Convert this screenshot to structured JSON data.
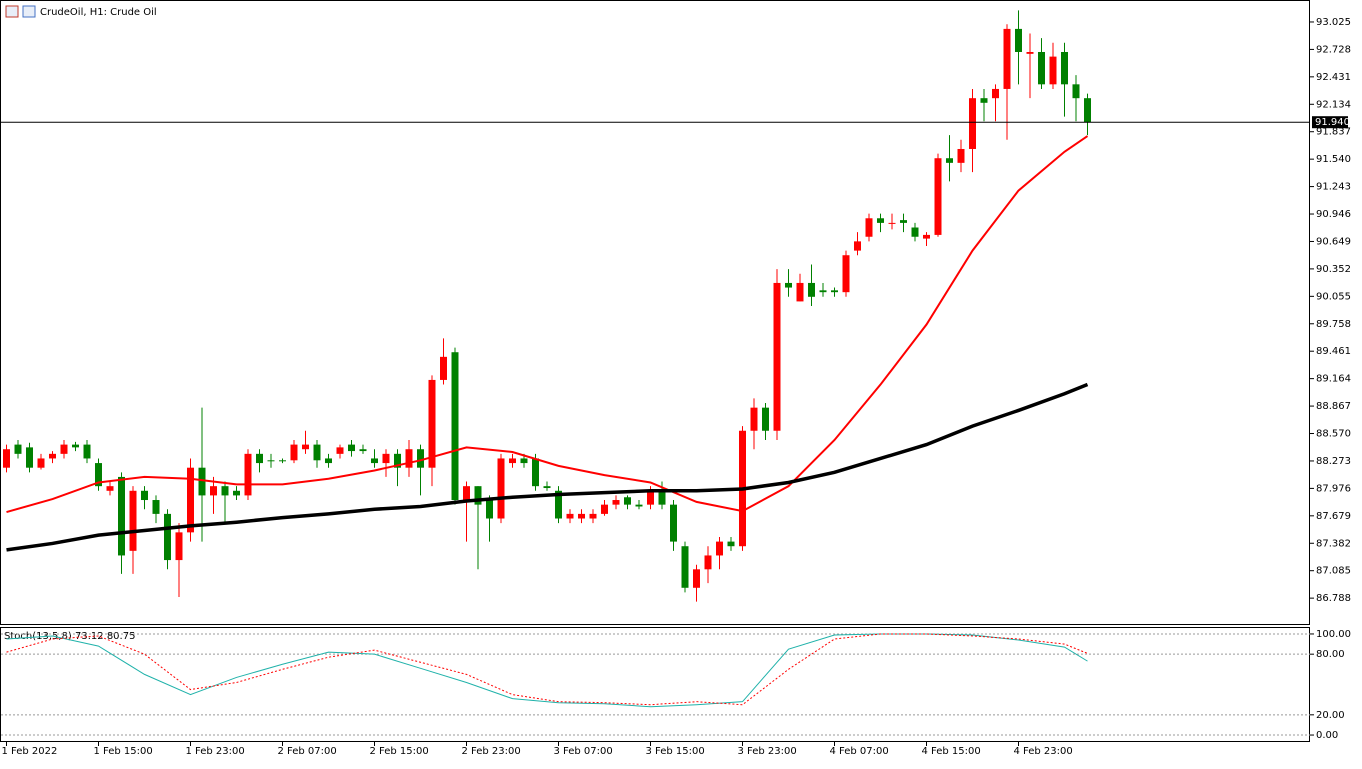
{
  "chart_data": [
    {
      "type": "candlestick",
      "title": "CrudeOil, H1:  Crude Oil",
      "categories": [
        "1 Feb 2022",
        null,
        null,
        null,
        null,
        null,
        null,
        null,
        "1 Feb 15:00",
        null,
        null,
        null,
        null,
        null,
        null,
        null,
        "1 Feb 23:00",
        null,
        null,
        null,
        null,
        null,
        null,
        null,
        "2 Feb 07:00",
        null,
        null,
        null,
        null,
        null,
        null,
        null,
        "2 Feb 15:00",
        null,
        null,
        null,
        null,
        null,
        null,
        null,
        "2 Feb 23:00",
        null,
        null,
        null,
        null,
        null,
        null,
        null,
        "3 Feb 07:00",
        null,
        null,
        null,
        null,
        null,
        null,
        null,
        "3 Feb 15:00",
        null,
        null,
        null,
        null,
        null,
        null,
        null,
        "3 Feb 23:00",
        null,
        null,
        null,
        null,
        null,
        null,
        null,
        "4 Feb 07:00",
        null,
        null,
        null,
        null,
        null,
        null,
        null,
        "4 Feb 15:00",
        null,
        null,
        null,
        null,
        null,
        null,
        null,
        "4 Feb 23:00",
        null,
        null,
        null,
        null,
        null,
        null
      ],
      "open": [
        88.2,
        88.45,
        88.42,
        88.2,
        88.3,
        88.35,
        88.45,
        88.45,
        88.25,
        87.95,
        88.1,
        87.3,
        87.95,
        87.85,
        87.7,
        87.2,
        87.5,
        88.2,
        87.9,
        88.0,
        87.95,
        87.9,
        88.35,
        88.28,
        88.28,
        88.28,
        88.4,
        88.45,
        88.3,
        88.35,
        88.45,
        88.4,
        88.3,
        88.25,
        88.35,
        88.2,
        88.4,
        88.2,
        89.15,
        89.45,
        87.85,
        88.0,
        87.85,
        87.65,
        88.25,
        88.3,
        88.3,
        88.0,
        87.95,
        87.65,
        87.65,
        87.65,
        87.7,
        87.8,
        87.88,
        87.8,
        87.8,
        87.95,
        87.8,
        87.35,
        86.9,
        87.1,
        87.25,
        87.4,
        87.35,
        88.6,
        88.85,
        88.6,
        90.2,
        90.0,
        90.2,
        90.12,
        90.12,
        90.1,
        90.55,
        90.7,
        90.9,
        90.85,
        90.88,
        90.8,
        90.68,
        90.72,
        91.55,
        91.5,
        91.65,
        92.2,
        92.2,
        92.3,
        92.95,
        92.68,
        92.7,
        92.35,
        92.7,
        92.35,
        92.2
      ],
      "high": [
        88.45,
        88.5,
        88.47,
        88.35,
        88.38,
        88.5,
        88.48,
        88.5,
        88.3,
        88.05,
        88.15,
        88.0,
        88.0,
        87.9,
        87.75,
        87.6,
        88.3,
        88.85,
        88.1,
        88.05,
        88.0,
        88.4,
        88.4,
        88.35,
        88.3,
        88.5,
        88.6,
        88.5,
        88.35,
        88.45,
        88.5,
        88.45,
        88.4,
        88.4,
        88.4,
        88.5,
        88.45,
        89.2,
        89.6,
        89.5,
        88.05,
        88.0,
        87.9,
        88.35,
        88.35,
        88.35,
        88.35,
        88.05,
        88.0,
        87.75,
        87.75,
        87.75,
        87.85,
        87.9,
        87.9,
        87.85,
        88.0,
        88.05,
        87.85,
        87.4,
        87.15,
        87.35,
        87.45,
        87.45,
        88.65,
        88.95,
        88.9,
        90.35,
        90.35,
        90.3,
        90.4,
        90.2,
        90.15,
        90.55,
        90.75,
        90.95,
        90.95,
        90.95,
        90.95,
        90.85,
        90.75,
        91.6,
        91.8,
        91.75,
        92.3,
        92.3,
        92.35,
        93.0,
        93.15,
        92.9,
        92.85,
        92.8,
        92.8,
        92.45,
        92.25
      ],
      "low": [
        88.15,
        88.3,
        88.15,
        88.18,
        88.25,
        88.3,
        88.38,
        88.25,
        87.95,
        87.9,
        87.05,
        87.05,
        87.75,
        87.6,
        87.1,
        86.8,
        87.4,
        87.4,
        87.7,
        87.6,
        87.85,
        87.85,
        88.15,
        88.2,
        88.25,
        88.25,
        88.35,
        88.2,
        88.2,
        88.3,
        88.32,
        88.35,
        88.2,
        88.1,
        88.0,
        88.1,
        87.9,
        88.0,
        89.1,
        87.8,
        87.4,
        87.1,
        87.4,
        87.6,
        88.2,
        88.2,
        87.95,
        87.95,
        87.6,
        87.6,
        87.6,
        87.6,
        87.68,
        87.75,
        87.75,
        87.75,
        87.75,
        87.75,
        87.3,
        86.85,
        86.75,
        86.95,
        87.1,
        87.3,
        87.3,
        88.4,
        88.5,
        88.5,
        90.05,
        90.0,
        89.95,
        90.05,
        90.05,
        90.05,
        90.5,
        90.65,
        90.75,
        90.78,
        90.75,
        90.65,
        90.6,
        90.7,
        91.3,
        91.4,
        91.4,
        91.95,
        91.95,
        91.75,
        92.35,
        92.2,
        92.3,
        92.3,
        92.0,
        91.95,
        91.8
      ],
      "close": [
        88.4,
        88.35,
        88.2,
        88.3,
        88.35,
        88.45,
        88.42,
        88.3,
        88.0,
        88.0,
        87.25,
        87.95,
        87.85,
        87.7,
        87.2,
        87.5,
        88.2,
        87.9,
        88.0,
        87.9,
        87.9,
        88.35,
        88.25,
        88.27,
        88.27,
        88.45,
        88.45,
        88.28,
        88.25,
        88.42,
        88.38,
        88.38,
        88.25,
        88.35,
        88.2,
        88.4,
        88.2,
        89.15,
        89.4,
        87.85,
        88.0,
        87.8,
        87.65,
        88.3,
        88.3,
        88.25,
        88.0,
        87.98,
        87.65,
        87.7,
        87.7,
        87.7,
        87.8,
        87.85,
        87.8,
        87.78,
        87.95,
        87.8,
        87.4,
        86.9,
        87.1,
        87.25,
        87.4,
        87.35,
        88.6,
        88.85,
        88.6,
        90.2,
        90.15,
        90.2,
        90.05,
        90.1,
        90.1,
        90.5,
        90.65,
        90.9,
        90.85,
        90.85,
        90.85,
        90.7,
        90.72,
        91.55,
        91.5,
        91.65,
        92.2,
        92.15,
        92.3,
        92.95,
        92.7,
        92.7,
        92.35,
        92.65,
        92.35,
        92.2,
        91.94
      ],
      "up_color": "#ff0000",
      "down_color": "#008000",
      "ylim": [
        86.508,
        93.252
      ],
      "yticks": [
        93.025,
        92.728,
        92.431,
        92.134,
        91.837,
        {
          "value": 91.54,
          "label": "91.540"
        },
        91.243,
        90.946,
        90.649,
        90.352,
        90.055,
        89.758,
        89.461,
        89.164,
        88.867,
        {
          "value": 88.57,
          "label": "88.570"
        },
        88.273,
        87.976,
        87.679,
        87.382,
        87.085,
        86.788
      ],
      "price_line": {
        "value": 91.94,
        "label": "91.940"
      },
      "lines": [
        {
          "color": "#ff0000",
          "width": 2,
          "x": [
            0,
            4,
            8,
            12,
            16,
            20,
            24,
            28,
            32,
            36,
            40,
            44,
            48,
            52,
            56,
            60,
            64,
            68,
            72,
            76,
            80,
            84,
            88,
            92,
            94
          ],
          "values": [
            87.72,
            87.86,
            88.04,
            88.1,
            88.08,
            88.02,
            88.02,
            88.08,
            88.17,
            88.28,
            88.42,
            88.37,
            88.22,
            88.12,
            88.04,
            87.83,
            87.73,
            88.0,
            88.5,
            89.1,
            89.75,
            90.55,
            91.2,
            91.62,
            91.79
          ]
        },
        {
          "color": "#000000",
          "width": 3.5,
          "x": [
            0,
            4,
            8,
            12,
            16,
            20,
            24,
            28,
            32,
            36,
            40,
            44,
            48,
            52,
            56,
            60,
            64,
            68,
            72,
            76,
            80,
            84,
            88,
            92,
            94
          ],
          "values": [
            87.31,
            87.38,
            87.47,
            87.52,
            87.57,
            87.61,
            87.66,
            87.7,
            87.75,
            87.78,
            87.84,
            87.88,
            87.91,
            87.93,
            87.95,
            87.95,
            87.97,
            88.04,
            88.15,
            88.3,
            88.45,
            88.65,
            88.82,
            89.0,
            89.1
          ]
        }
      ]
    },
    {
      "type": "line",
      "title": "Stoch(13,5,8) 73.12 80.75",
      "ylim": [
        -5.9,
        105.9
      ],
      "yticks": [
        {
          "value": 100,
          "label": "100.00"
        },
        {
          "value": 80,
          "label": "80.00"
        },
        {
          "value": 20,
          "label": "20.00"
        },
        {
          "value": 0,
          "label": "0.00"
        }
      ],
      "x": [
        0,
        4,
        8,
        12,
        16,
        20,
        24,
        28,
        32,
        36,
        40,
        44,
        48,
        52,
        56,
        60,
        64,
        68,
        72,
        76,
        80,
        84,
        88,
        92,
        94
      ],
      "series": [
        {
          "color": "#20b2aa",
          "dashed": false,
          "values": [
            95,
            98,
            88,
            60,
            40,
            57,
            70,
            82,
            80,
            66,
            52,
            36,
            32,
            31,
            28,
            30,
            33,
            85,
            99,
            100,
            100,
            99,
            94,
            87,
            73.12
          ]
        },
        {
          "color": "#ff0000",
          "dashed": true,
          "values": [
            82,
            95,
            98,
            80,
            45,
            52,
            65,
            77,
            84,
            72,
            60,
            40,
            33,
            32,
            30,
            33,
            30,
            65,
            95,
            100,
            100,
            98,
            95,
            90,
            80.75
          ]
        }
      ]
    }
  ]
}
